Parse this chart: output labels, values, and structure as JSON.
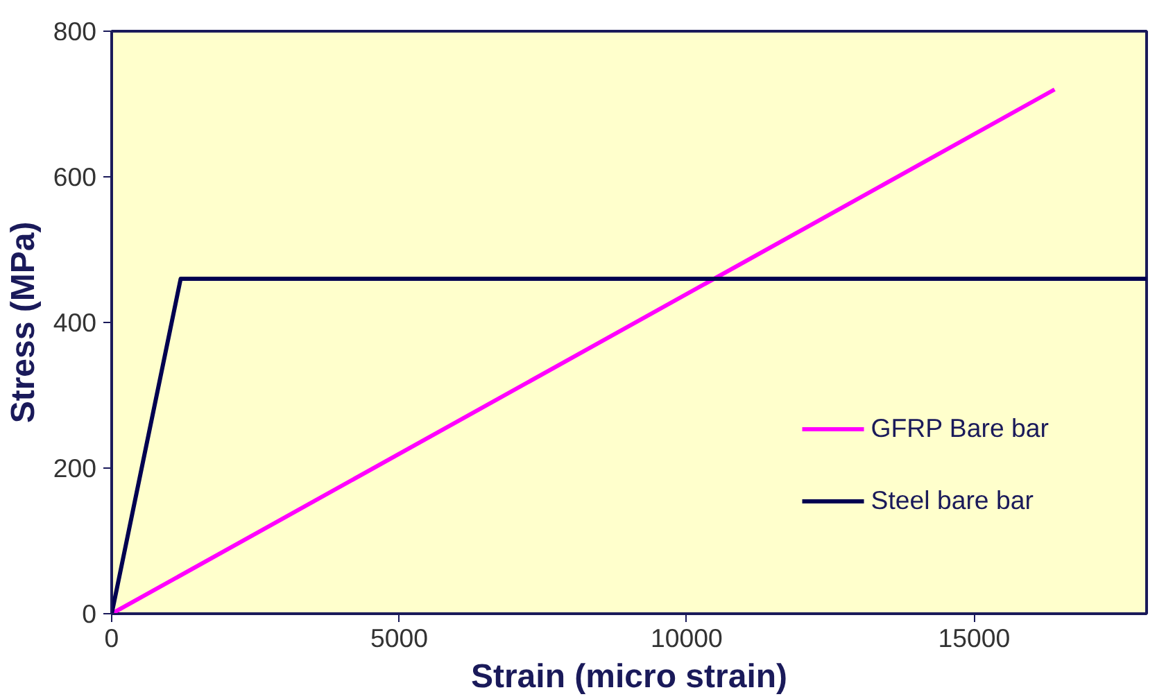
{
  "chart_data": {
    "type": "line",
    "xlabel": "Strain (micro strain)",
    "ylabel": "Stress (MPa)",
    "xlim": [
      0,
      18000
    ],
    "ylim": [
      0,
      800
    ],
    "xticks": [
      0,
      5000,
      10000,
      15000
    ],
    "yticks": [
      0,
      200,
      400,
      600,
      800
    ],
    "grid": false,
    "legend": "bottom right",
    "marker": "none",
    "line_style": "solid",
    "series": [
      {
        "name": "GFRP Bare bar",
        "color": "#ff00ff",
        "x": [
          0,
          16400
        ],
        "values": [
          0,
          720
        ]
      },
      {
        "name": "Steel bare bar",
        "color": "#000050",
        "x": [
          0,
          1200,
          18000
        ],
        "values": [
          0,
          460,
          460
        ]
      }
    ]
  }
}
